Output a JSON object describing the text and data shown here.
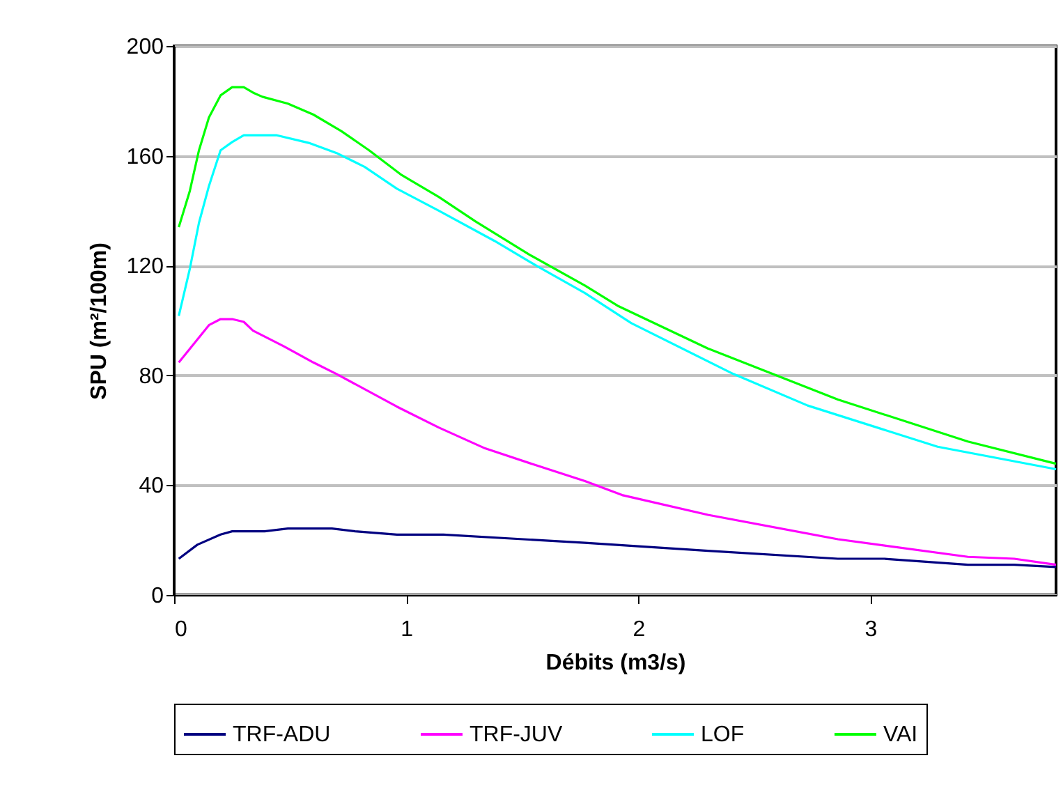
{
  "chart_data": {
    "type": "line",
    "xlabel": "Débits (m3/s)",
    "ylabel": "SPU (m²/100m)",
    "xlim": [
      0,
      3.8
    ],
    "xticks": [
      0,
      1,
      2,
      3
    ],
    "ylim": [
      0,
      200
    ],
    "yticks": [
      0,
      40,
      80,
      120,
      160,
      200
    ],
    "grid": "y",
    "legend": "bottom",
    "marker": "none",
    "line_style": "solid",
    "series": [
      {
        "name": "TRF-ADU",
        "color": "#000080",
        "x": [
          0.02,
          0.1,
          0.2,
          0.25,
          0.39,
          0.49,
          0.68,
          0.78,
          0.96,
          1.16,
          1.77,
          2.3,
          2.86,
          3.06,
          3.42,
          3.62,
          3.8
        ],
        "values": [
          13.2,
          18.3,
          22,
          23.2,
          23.2,
          24.2,
          24.2,
          23.2,
          22,
          22,
          19,
          16.1,
          13.2,
          13.2,
          11,
          11,
          10.2
        ]
      },
      {
        "name": "TRF-JUV",
        "color": "#ff00ff",
        "x": [
          0.02,
          0.15,
          0.2,
          0.25,
          0.3,
          0.34,
          0.47,
          0.6,
          0.7,
          0.96,
          1.14,
          1.34,
          1.55,
          1.77,
          1.93,
          2.3,
          2.86,
          3.42,
          3.62,
          3.8
        ],
        "values": [
          84.7,
          98.3,
          100.5,
          100.5,
          99.5,
          96.3,
          90.7,
          84.7,
          80.5,
          68.6,
          61,
          53.4,
          47.5,
          41.5,
          36.4,
          29.2,
          20.3,
          13.9,
          13.2,
          11
        ]
      },
      {
        "name": "LOF",
        "color": "#00ffff",
        "x": [
          0.02,
          0.067,
          0.107,
          0.15,
          0.2,
          0.25,
          0.3,
          0.44,
          0.58,
          0.7,
          0.82,
          0.96,
          1.14,
          1.38,
          1.57,
          1.77,
          1.97,
          2.41,
          2.73,
          3.29,
          3.8
        ],
        "values": [
          101.7,
          118.6,
          135.6,
          149,
          162,
          165,
          167.5,
          167.5,
          164.7,
          161,
          156,
          148,
          140,
          129,
          119.5,
          110,
          99,
          80.5,
          69,
          54,
          45.8
        ]
      },
      {
        "name": "VAI",
        "color": "#00ff00",
        "x": [
          0.02,
          0.067,
          0.107,
          0.15,
          0.2,
          0.25,
          0.3,
          0.34,
          0.38,
          0.49,
          0.6,
          0.72,
          0.84,
          0.98,
          1.14,
          1.3,
          1.53,
          1.77,
          1.91,
          2.3,
          2.86,
          3.42,
          3.8
        ],
        "values": [
          134,
          147,
          162,
          174,
          182,
          185,
          185,
          183,
          181.5,
          179,
          175,
          169,
          162,
          153,
          145,
          136,
          124,
          112.7,
          105.4,
          89.8,
          71.2,
          55.9,
          47.8
        ]
      }
    ]
  }
}
